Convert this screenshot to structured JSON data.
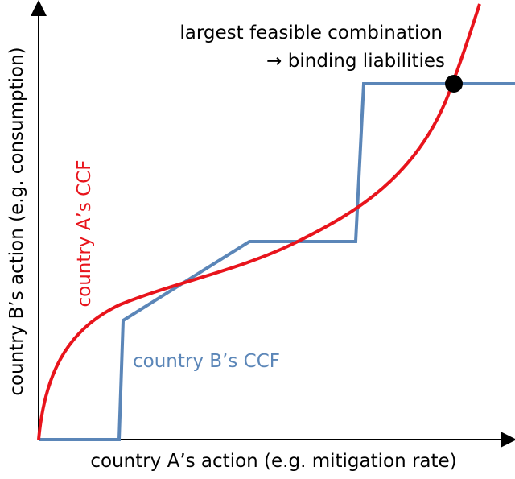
{
  "y_axis_label": "country B’s action (e.g. consumption)",
  "x_axis_label": "country A’s action (e.g. mitigation rate)",
  "annotation": {
    "line1": "largest feasible combination",
    "line2": "→ binding liabilities"
  },
  "curves": [
    {
      "label": "country A’s CCF"
    },
    {
      "label": "country B’s CCF"
    }
  ]
}
